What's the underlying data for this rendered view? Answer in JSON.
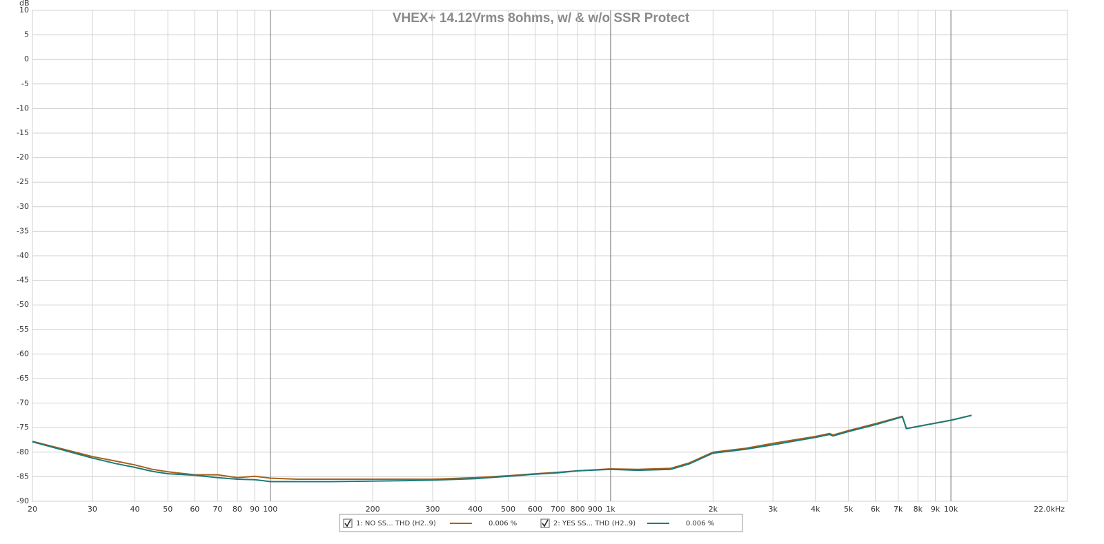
{
  "chart_data": {
    "type": "line",
    "title": "VHEX+ 14.12Vrms 8ohms, w/ & w/o SSR Protect",
    "y_label": "dB",
    "x_scale": "log",
    "grid": true,
    "x": [
      20,
      25,
      30,
      35,
      40,
      45,
      50,
      60,
      70,
      80,
      90,
      100,
      120,
      150,
      200,
      250,
      300,
      400,
      500,
      600,
      700,
      800,
      1000,
      1200,
      1500,
      1700,
      2000,
      2500,
      3000,
      4000,
      4400,
      4500,
      5000,
      6000,
      7200,
      7400,
      10000,
      11500
    ],
    "series": [
      {
        "name": "1: NO SS... THD (H2..9)",
        "readout": "0.006 %",
        "color": "#a8601c",
        "values": [
          -77.8,
          -79.5,
          -80.9,
          -81.8,
          -82.6,
          -83.5,
          -84.0,
          -84.6,
          -84.6,
          -85.2,
          -84.9,
          -85.3,
          -85.5,
          -85.5,
          -85.5,
          -85.5,
          -85.5,
          -85.2,
          -84.8,
          -84.4,
          -84.1,
          -83.8,
          -83.4,
          -83.5,
          -83.3,
          -82.2,
          -80.0,
          -79.2,
          -78.2,
          -76.8,
          -76.2,
          -76.5,
          -75.6,
          -74.2,
          -72.7,
          -75.2,
          -73.5,
          -72.5
        ]
      },
      {
        "name": "2: YES SS... THD (H2..9)",
        "readout": "0.006 %",
        "color": "#1c7a7a",
        "values": [
          -77.9,
          -79.7,
          -81.2,
          -82.3,
          -83.1,
          -83.9,
          -84.4,
          -84.7,
          -85.2,
          -85.5,
          -85.6,
          -86.0,
          -86.0,
          -86.0,
          -85.9,
          -85.8,
          -85.7,
          -85.4,
          -84.9,
          -84.5,
          -84.2,
          -83.8,
          -83.5,
          -83.7,
          -83.5,
          -82.4,
          -80.2,
          -79.4,
          -78.5,
          -77.0,
          -76.4,
          -76.7,
          -75.8,
          -74.4,
          -72.8,
          -75.2,
          -73.5,
          -72.5
        ]
      }
    ],
    "xlim": [
      20,
      22000
    ],
    "xticks": [
      20,
      30,
      40,
      50,
      60,
      70,
      80,
      90,
      100,
      200,
      300,
      400,
      500,
      600,
      700,
      800,
      900,
      {
        "value": 1000,
        "label": "1k"
      },
      {
        "value": 2000,
        "label": "2k"
      },
      {
        "value": 3000,
        "label": "3k"
      },
      {
        "value": 4000,
        "label": "4k"
      },
      {
        "value": 5000,
        "label": "5k"
      },
      {
        "value": 6000,
        "label": "6k"
      },
      {
        "value": 7000,
        "label": "7k"
      },
      {
        "value": 8000,
        "label": "8k"
      },
      {
        "value": 9000,
        "label": "9k"
      },
      {
        "value": 10000,
        "label": "10k"
      },
      {
        "value": 22000,
        "label": "22.0kHz"
      }
    ],
    "ylim": [
      -90,
      10
    ],
    "yticks": [
      10,
      5,
      0,
      -5,
      -10,
      -15,
      -20,
      -25,
      -30,
      -35,
      -40,
      -45,
      -50,
      -55,
      -60,
      -65,
      -70,
      -75,
      -80,
      -85,
      -90
    ]
  }
}
